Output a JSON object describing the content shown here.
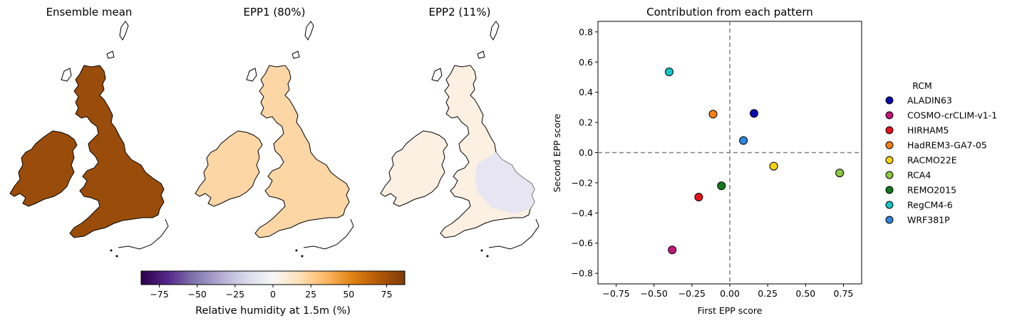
{
  "maps": [
    {
      "title": "Ensemble mean",
      "fill": "#9a4d0b",
      "ireland_fill": "#9a4d0b"
    },
    {
      "title": "EPP1 (80%)",
      "fill": "#fdd6a6",
      "ireland_fill": "#fdd6a6"
    },
    {
      "title": "EPP2 (11%)",
      "fill": "#fbf0e2",
      "ireland_fill": "#fbf0e2",
      "se_fill": "#e6e5f1"
    }
  ],
  "colorbar": {
    "label": "Relative humidity at 1.5m (%)",
    "range": [
      -87,
      87
    ],
    "ticks": [
      -75,
      -50,
      -25,
      0,
      25,
      50,
      75
    ],
    "colors": [
      "#2d004b",
      "#542788",
      "#8073ac",
      "#b2abd2",
      "#d8daeb",
      "#f7f7f7",
      "#fee0b6",
      "#fdb863",
      "#e08214",
      "#b35806",
      "#7f3b08"
    ]
  },
  "chart_data": {
    "type": "scatter",
    "title": "Contribution from each pattern",
    "xlabel": "First EPP score",
    "ylabel": "Second EPP score",
    "xlim": [
      -0.87,
      0.87
    ],
    "ylim": [
      -0.87,
      0.87
    ],
    "xticks": [
      -0.75,
      -0.5,
      -0.25,
      0.0,
      0.25,
      0.5,
      0.75
    ],
    "yticks": [
      -0.8,
      -0.6,
      -0.4,
      -0.2,
      0.0,
      0.2,
      0.4,
      0.6,
      0.8
    ],
    "reference_lines": {
      "x": 0.0,
      "y": 0.0
    },
    "legend": {
      "title": "RCM",
      "placement": "right-outside"
    },
    "series": [
      {
        "name": "ALADIN63",
        "x": 0.16,
        "y": 0.26,
        "color": "#0a0ab4"
      },
      {
        "name": "COSMO-crCLIM-v1-1",
        "x": -0.38,
        "y": -0.645,
        "color": "#c2187a"
      },
      {
        "name": "HIRHAM5",
        "x": -0.205,
        "y": -0.295,
        "color": "#e6121b"
      },
      {
        "name": "HadREM3-GA7-05",
        "x": -0.11,
        "y": 0.255,
        "color": "#f77f1a"
      },
      {
        "name": "RACMO22E",
        "x": 0.29,
        "y": -0.09,
        "color": "#f7d40f"
      },
      {
        "name": "RCA4",
        "x": 0.725,
        "y": -0.135,
        "color": "#8dc63f"
      },
      {
        "name": "REMO2015",
        "x": -0.055,
        "y": -0.22,
        "color": "#127a1a"
      },
      {
        "name": "RegCM4-6",
        "x": -0.4,
        "y": 0.535,
        "color": "#12c7c7"
      },
      {
        "name": "WRF381P",
        "x": 0.09,
        "y": 0.08,
        "color": "#2e86e0"
      }
    ]
  }
}
